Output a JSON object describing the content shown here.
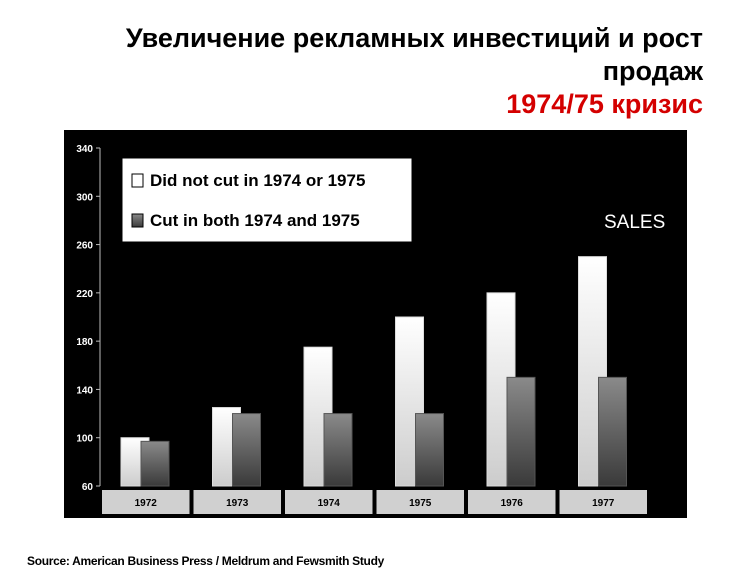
{
  "title": "Увеличение рекламных инвестиций и рост продаж",
  "subtitle": "1974/75 кризис",
  "source": "Source: American Business Press / Meldrum and Fewsmith Study",
  "chart_data": {
    "type": "bar",
    "categories": [
      "1972",
      "1973",
      "1974",
      "1975",
      "1976",
      "1977"
    ],
    "series": [
      {
        "name": "Did not cut in 1974 or 1975",
        "values": [
          100,
          125,
          175,
          200,
          220,
          250
        ],
        "color": "#ffffff"
      },
      {
        "name": "Cut in both 1974 and 1975",
        "values": [
          97,
          120,
          120,
          120,
          150,
          150
        ],
        "color": "#777777"
      }
    ],
    "yticks": [
      60,
      100,
      140,
      180,
      220,
      260,
      300,
      340
    ],
    "ylim": [
      60,
      340
    ],
    "annotation": "SALES",
    "legend_position": "top-left",
    "grid": false,
    "background": "#000000"
  }
}
